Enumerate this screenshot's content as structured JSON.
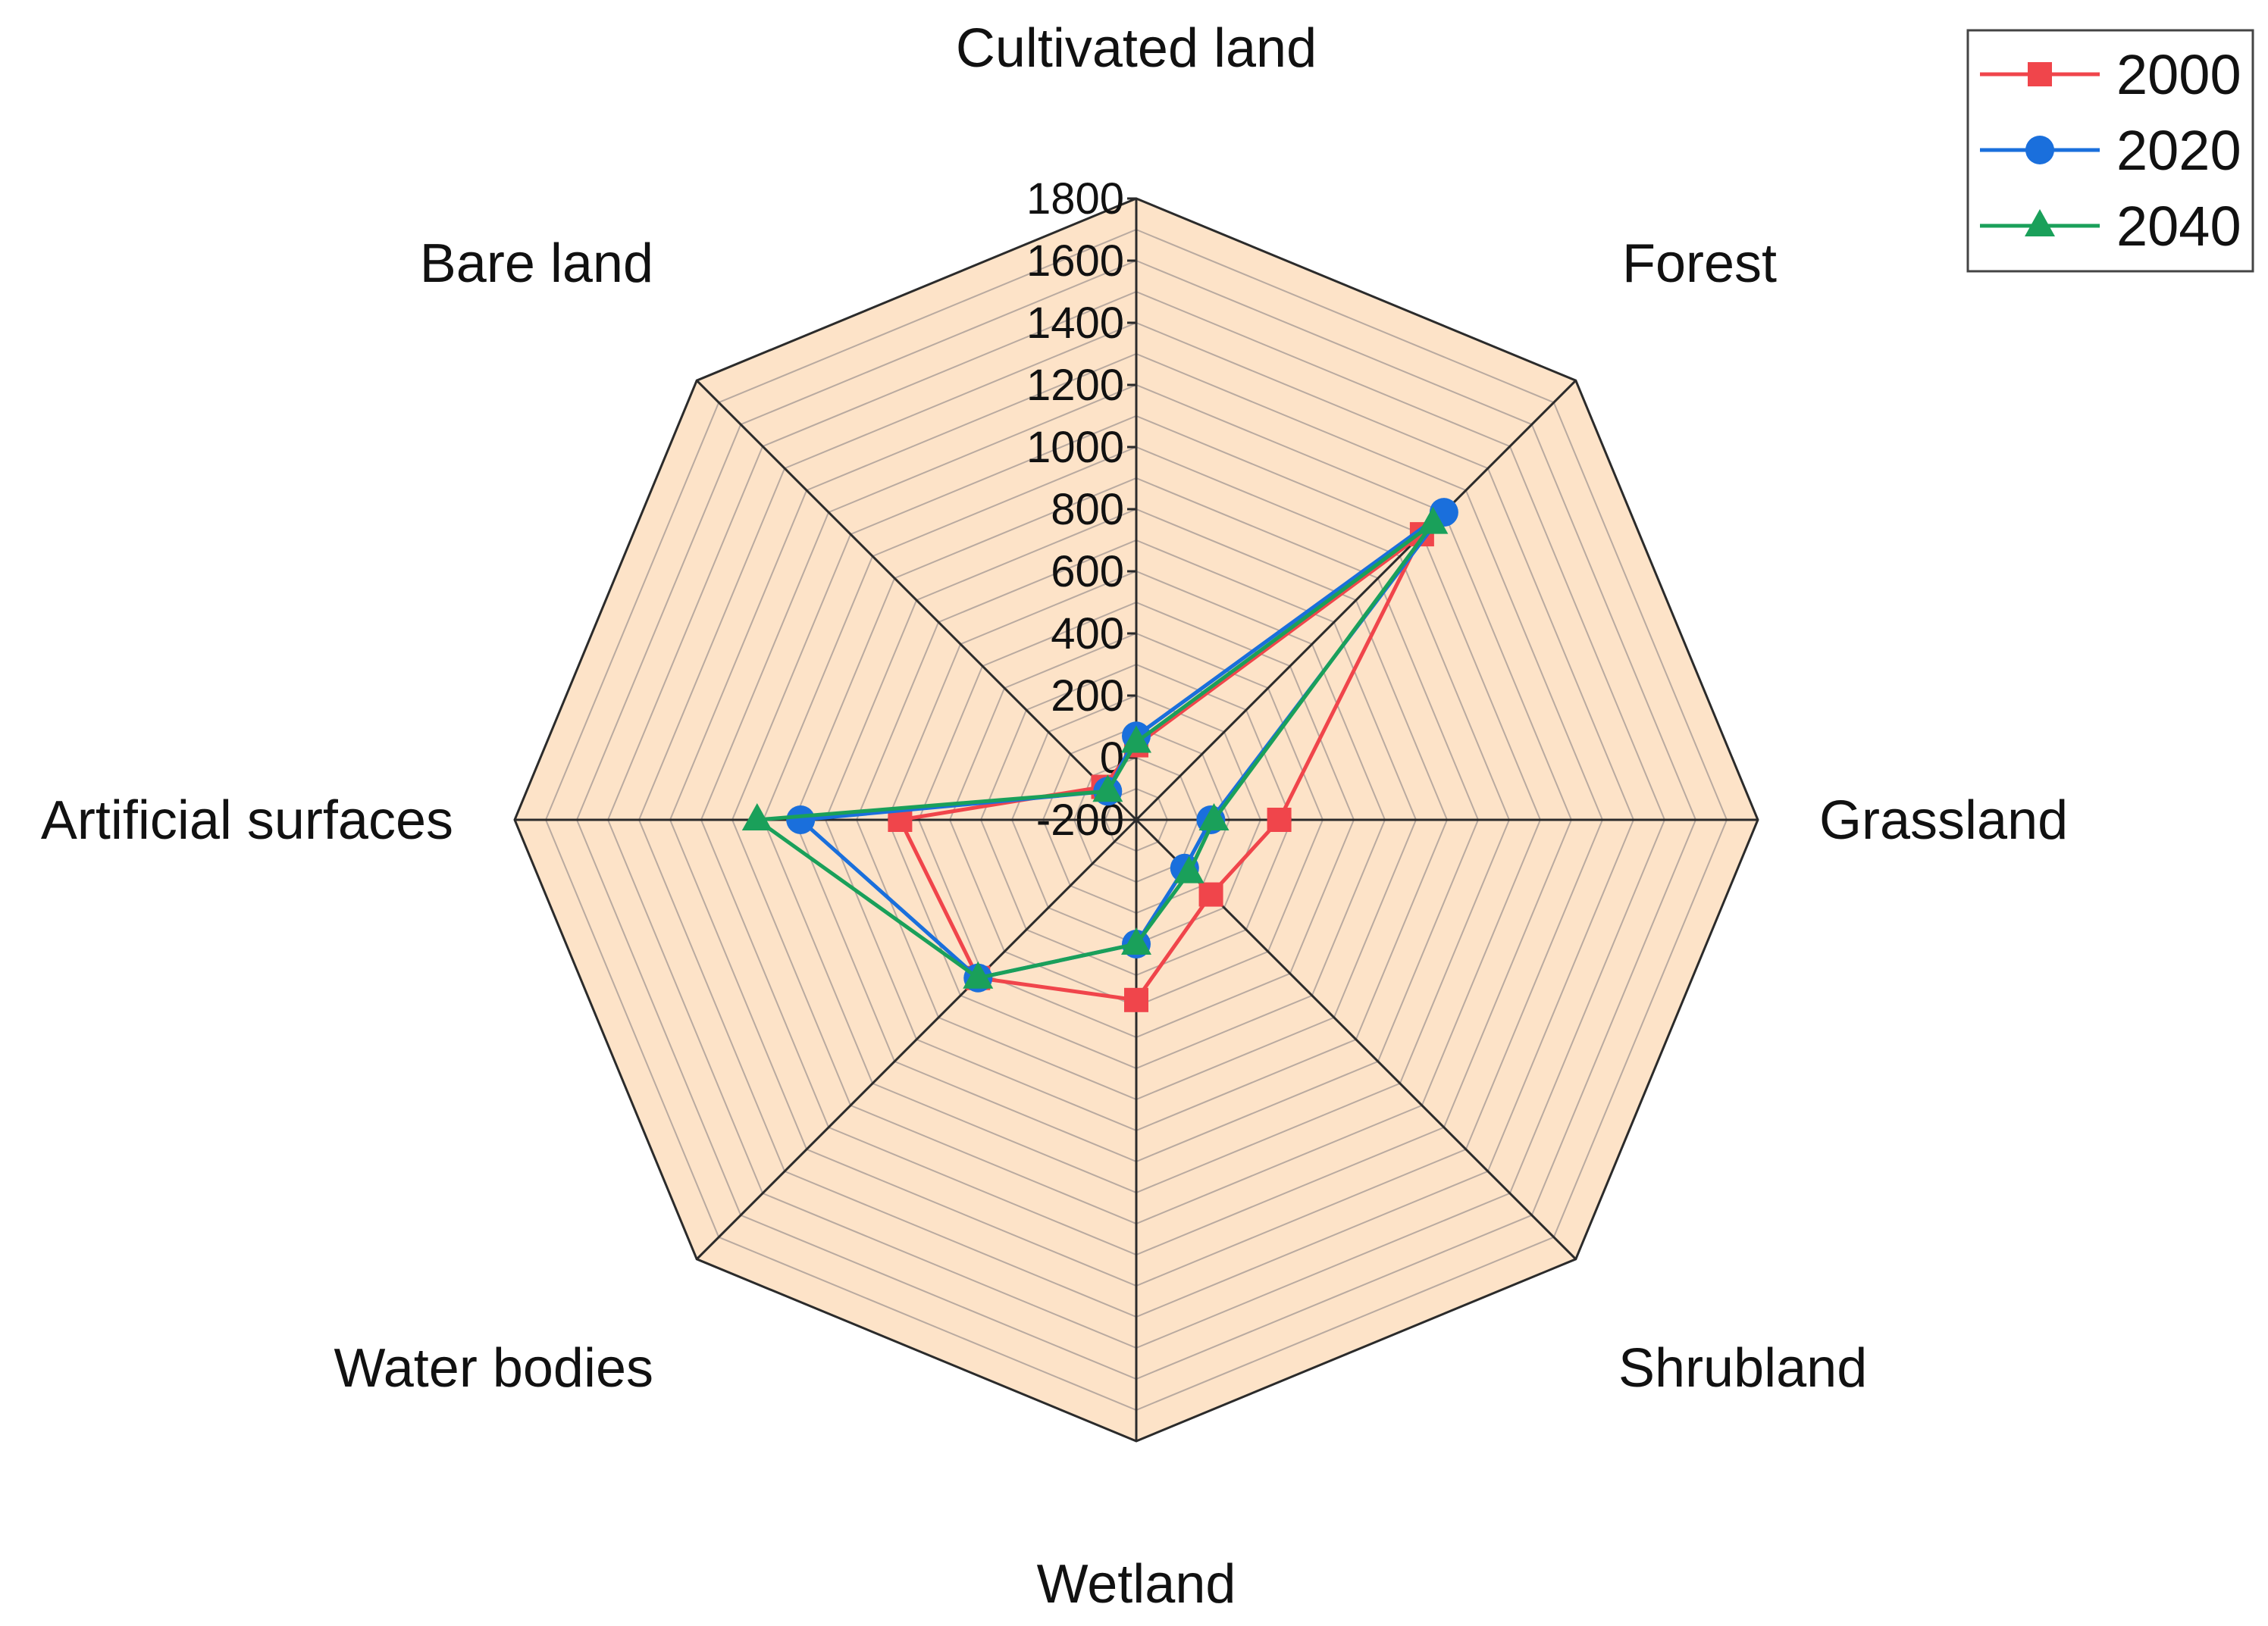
{
  "chart_data": {
    "type": "radar",
    "categories": [
      "Cultivated land",
      "Forest",
      "Grassland",
      "Shrubland",
      "Wetland",
      "Water bodies",
      "Artificial surfaces",
      "Bare land"
    ],
    "radial_ticks": [
      -200,
      0,
      200,
      400,
      600,
      800,
      1000,
      1200,
      1400,
      1600,
      1800
    ],
    "tick_labels": [
      "-200",
      "0",
      "200",
      "400",
      "600",
      "800",
      "1000",
      "1200",
      "1400",
      "1600",
      "1800"
    ],
    "rlim": [
      -200,
      1800
    ],
    "grid": true,
    "legend_position": "top-right",
    "series": [
      {
        "name": "2000",
        "color": "#f0454b",
        "marker": "square",
        "values": [
          40,
          1100,
          260,
          140,
          380,
          520,
          560,
          -50
        ]
      },
      {
        "name": "2020",
        "color": "#1a6fdc",
        "marker": "circle",
        "values": [
          70,
          1200,
          40,
          20,
          200,
          520,
          880,
          -70
        ]
      },
      {
        "name": "2040",
        "color": "#1aa05a",
        "marker": "triangle",
        "values": [
          50,
          1150,
          50,
          40,
          200,
          520,
          1020,
          -70
        ]
      }
    ]
  },
  "colors": {
    "plot_fill": "#fde3c8",
    "axis_line": "#2b2b2b",
    "grid_line": "#b9aaa0"
  }
}
